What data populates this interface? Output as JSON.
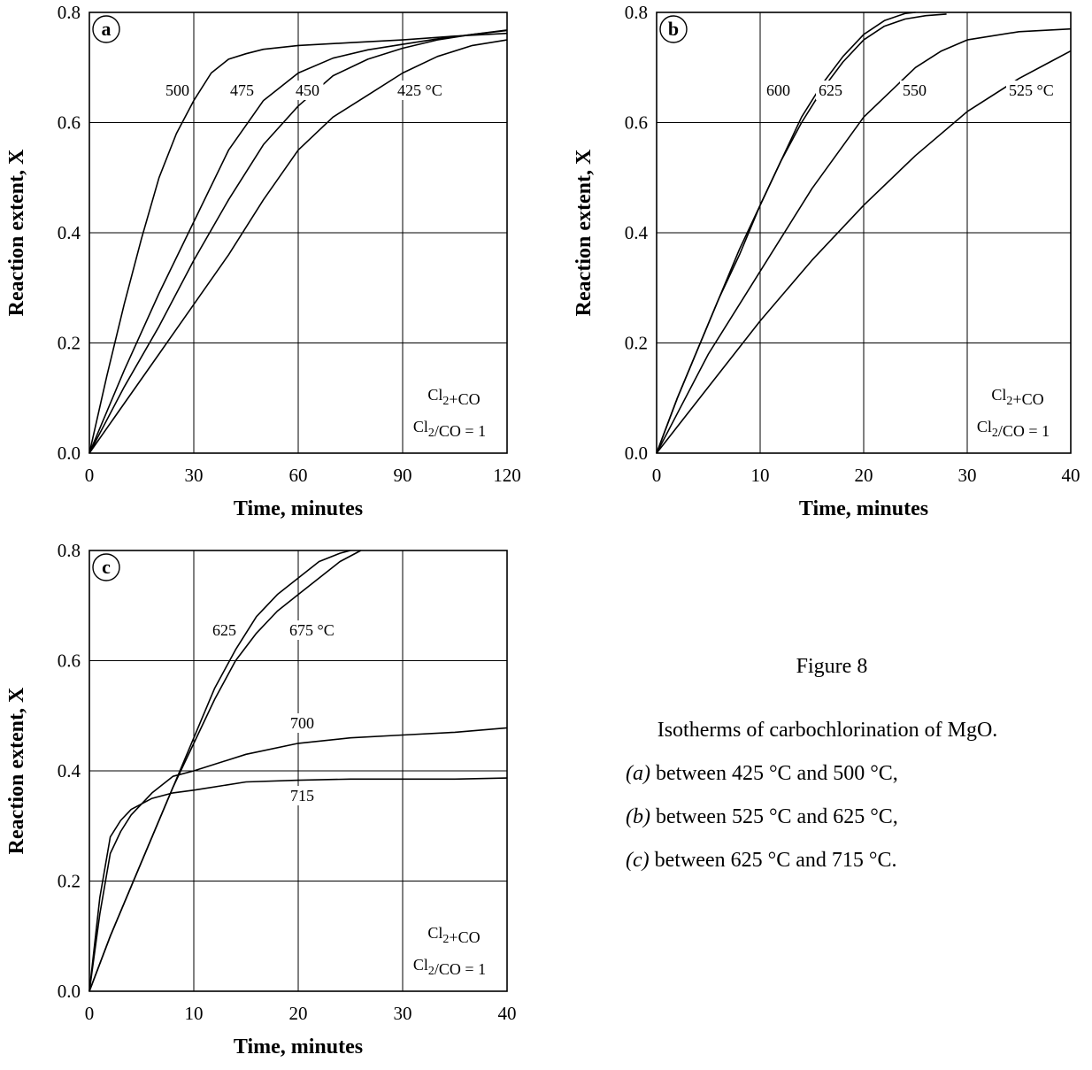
{
  "chart_data": [
    {
      "type": "line",
      "panel": "a",
      "xlabel": "Time, minutes",
      "ylabel": "Reaction extent, X",
      "xlim": [
        0,
        120
      ],
      "ylim": [
        0,
        0.8
      ],
      "xticks": [
        "0",
        "30",
        "60",
        "90",
        "120"
      ],
      "yticks": [
        "0.0",
        "0.2",
        "0.4",
        "0.6",
        "0.8"
      ],
      "grid": true,
      "conditions": [
        "Cl2+CO",
        "Cl2/CO = 1"
      ],
      "series": [
        {
          "name": "500",
          "x": [
            0,
            5,
            10,
            15,
            20,
            25,
            30,
            35,
            40,
            45,
            50,
            60,
            75,
            90,
            105,
            120
          ],
          "y": [
            0,
            0.14,
            0.27,
            0.39,
            0.5,
            0.58,
            0.64,
            0.69,
            0.715,
            0.725,
            0.733,
            0.74,
            0.745,
            0.75,
            0.757,
            0.762
          ]
        },
        {
          "name": "475",
          "x": [
            0,
            10,
            20,
            30,
            40,
            50,
            60,
            70,
            80,
            90,
            100,
            110,
            120
          ],
          "y": [
            0,
            0.15,
            0.29,
            0.42,
            0.55,
            0.64,
            0.69,
            0.717,
            0.732,
            0.742,
            0.752,
            0.76,
            0.767
          ]
        },
        {
          "name": "450",
          "x": [
            0,
            10,
            20,
            30,
            40,
            50,
            60,
            70,
            80,
            90,
            100,
            110,
            120
          ],
          "y": [
            0,
            0.12,
            0.23,
            0.35,
            0.46,
            0.56,
            0.63,
            0.685,
            0.715,
            0.735,
            0.75,
            0.76,
            0.768
          ]
        },
        {
          "name": "425 °C",
          "x": [
            0,
            10,
            20,
            30,
            40,
            50,
            60,
            70,
            80,
            90,
            100,
            110,
            120
          ],
          "y": [
            0,
            0.09,
            0.18,
            0.27,
            0.36,
            0.46,
            0.55,
            0.61,
            0.65,
            0.69,
            0.72,
            0.74,
            0.75
          ]
        }
      ]
    },
    {
      "type": "line",
      "panel": "b",
      "xlabel": "Time, minutes",
      "ylabel": "Reaction extent, X",
      "xlim": [
        0,
        40
      ],
      "ylim": [
        0,
        0.8
      ],
      "xticks": [
        "0",
        "10",
        "20",
        "30",
        "40"
      ],
      "yticks": [
        "0.0",
        "0.2",
        "0.4",
        "0.6",
        "0.8"
      ],
      "grid": true,
      "conditions": [
        "Cl2+CO",
        "Cl2/CO = 1"
      ],
      "series": [
        {
          "name": "600",
          "x": [
            0,
            2,
            4,
            6,
            8,
            10,
            12,
            14,
            16,
            18,
            20,
            22,
            24,
            25
          ],
          "y": [
            0,
            0.1,
            0.19,
            0.28,
            0.36,
            0.45,
            0.53,
            0.61,
            0.67,
            0.72,
            0.76,
            0.785,
            0.798,
            0.8
          ]
        },
        {
          "name": "625",
          "x": [
            0,
            2,
            4,
            6,
            8,
            10,
            12,
            14,
            16,
            18,
            20,
            22,
            24,
            26,
            28
          ],
          "y": [
            0,
            0.1,
            0.19,
            0.28,
            0.37,
            0.45,
            0.53,
            0.6,
            0.66,
            0.71,
            0.75,
            0.775,
            0.788,
            0.794,
            0.797
          ]
        },
        {
          "name": "550",
          "x": [
            0,
            5,
            10,
            15,
            20,
            25,
            27.5,
            30,
            35,
            40
          ],
          "y": [
            0,
            0.18,
            0.33,
            0.48,
            0.61,
            0.7,
            0.73,
            0.75,
            0.765,
            0.77
          ]
        },
        {
          "name": "525 °C",
          "x": [
            0,
            5,
            10,
            15,
            20,
            25,
            30,
            35,
            38,
            40
          ],
          "y": [
            0,
            0.12,
            0.24,
            0.35,
            0.45,
            0.54,
            0.62,
            0.68,
            0.71,
            0.73
          ]
        }
      ]
    },
    {
      "type": "line",
      "panel": "c",
      "xlabel": "Time, minutes",
      "ylabel": "Reaction extent, X",
      "xlim": [
        0,
        40
      ],
      "ylim": [
        0,
        0.8
      ],
      "xticks": [
        "0",
        "10",
        "20",
        "30",
        "40"
      ],
      "yticks": [
        "0.0",
        "0.2",
        "0.4",
        "0.6",
        "0.8"
      ],
      "grid": true,
      "conditions": [
        "Cl2+CO",
        "Cl2/CO = 1"
      ],
      "series": [
        {
          "name": "625",
          "x": [
            0,
            2,
            4,
            6,
            8,
            10,
            12,
            14,
            16,
            18,
            20,
            22,
            24,
            25
          ],
          "y": [
            0,
            0.1,
            0.19,
            0.28,
            0.37,
            0.46,
            0.55,
            0.62,
            0.68,
            0.72,
            0.75,
            0.78,
            0.795,
            0.8
          ]
        },
        {
          "name": "675 °C",
          "x": [
            0,
            2,
            4,
            6,
            8,
            10,
            12,
            14,
            16,
            18,
            20,
            22,
            24,
            26
          ],
          "y": [
            0,
            0.1,
            0.19,
            0.28,
            0.37,
            0.45,
            0.53,
            0.6,
            0.65,
            0.69,
            0.72,
            0.75,
            0.78,
            0.8
          ]
        },
        {
          "name": "700",
          "x": [
            0,
            1,
            2,
            3,
            4,
            6,
            8,
            10,
            15,
            20,
            25,
            30,
            35,
            40
          ],
          "y": [
            0,
            0.14,
            0.25,
            0.29,
            0.32,
            0.36,
            0.39,
            0.4,
            0.43,
            0.45,
            0.46,
            0.465,
            0.47,
            0.478
          ]
        },
        {
          "name": "715",
          "x": [
            0,
            1,
            2,
            3,
            4,
            6,
            8,
            10,
            15,
            20,
            25,
            30,
            35,
            40
          ],
          "y": [
            0,
            0.17,
            0.28,
            0.31,
            0.33,
            0.35,
            0.36,
            0.365,
            0.38,
            0.383,
            0.385,
            0.385,
            0.385,
            0.387
          ]
        }
      ]
    }
  ],
  "caption": {
    "title": "Figure 8",
    "subtitle": "Isotherms of carbochlorination of MgO.",
    "items": [
      {
        "label": "(a)",
        "text": "between 425 °C and 500 °C,"
      },
      {
        "label": "(b)",
        "text": "between 525 °C and 625 °C,"
      },
      {
        "label": "(c)",
        "text": "between 625 °C and 715 °C."
      }
    ]
  }
}
